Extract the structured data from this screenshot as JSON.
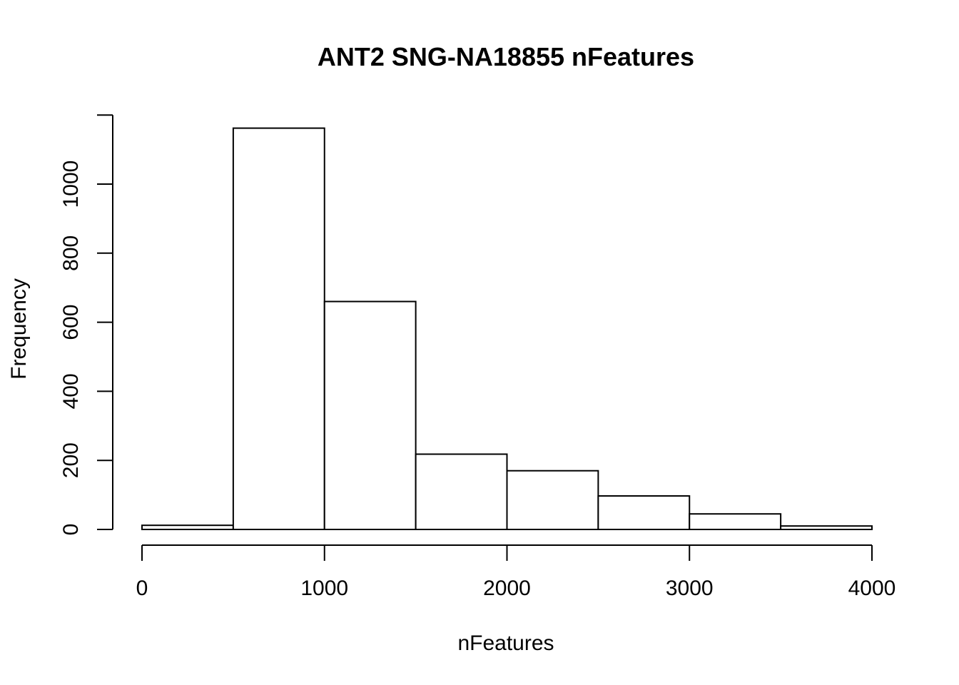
{
  "chart_data": {
    "type": "bar",
    "title": "ANT2 SNG-NA18855 nFeatures",
    "xlabel": "nFeatures",
    "ylabel": "Frequency",
    "bin_edges": [
      0,
      500,
      1000,
      1500,
      2000,
      2500,
      3000,
      3500,
      4000
    ],
    "values": [
      12,
      1162,
      660,
      218,
      170,
      97,
      45,
      10
    ],
    "xlim": [
      0,
      4000
    ],
    "ylim": [
      0,
      1200
    ],
    "x_ticks": [
      0,
      1000,
      2000,
      3000,
      4000
    ],
    "x_tick_labels": [
      "0",
      "1000",
      "2000",
      "3000",
      "4000"
    ],
    "y_ticks": [
      0,
      200,
      400,
      600,
      800,
      1000
    ],
    "y_tick_labels": [
      "0",
      "200",
      "400",
      "600",
      "800",
      "1000"
    ],
    "grid": false,
    "colors": {
      "bar_fill": "#ffffff",
      "bar_stroke": "#000000"
    }
  }
}
